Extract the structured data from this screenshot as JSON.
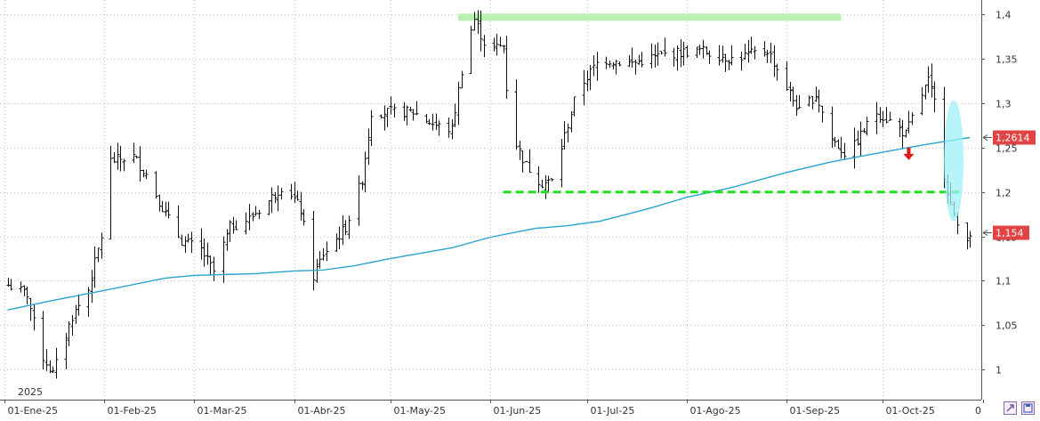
{
  "chart_data": {
    "type": "ohlc",
    "year_label": "2025",
    "x_tick_labels": [
      "01-Ene-25",
      "01-Feb-25",
      "01-Mar-25",
      "01-Abr-25",
      "01-May-25",
      "01-Jun-25",
      "01-Jul-25",
      "01-Ago-25",
      "01-Sep-25",
      "01-Oct-25",
      "0"
    ],
    "y_tick_labels": [
      "1",
      "1,05",
      "1,1",
      "1,15",
      "1,2",
      "1,25",
      "1,3",
      "1,35",
      "1,4"
    ],
    "ylim": [
      0.97,
      1.42
    ],
    "grid": true,
    "price_tags": [
      {
        "label": "1,2614",
        "value": 1.2614,
        "color": "#e04444"
      },
      {
        "label": "1,154",
        "value": 1.154,
        "color": "#e04444"
      }
    ],
    "annotations": {
      "resistance_level": 1.397,
      "support_level": 1.2,
      "arrow": "down",
      "arrow_color": "#e01818",
      "support_color": "#22dd22",
      "resistance_color": "#b8f0b0",
      "ellipse_color": "#9ff0f8"
    },
    "ma_color": "#2aa3d0",
    "moving_average": [
      [
        "2025-01-02",
        1.067
      ],
      [
        "2025-01-15",
        1.077
      ],
      [
        "2025-02-01",
        1.089
      ],
      [
        "2025-02-20",
        1.103
      ],
      [
        "2025-03-01",
        1.106
      ],
      [
        "2025-03-20",
        1.108
      ],
      [
        "2025-04-01",
        1.111
      ],
      [
        "2025-04-10",
        1.112
      ],
      [
        "2025-04-20",
        1.117
      ],
      [
        "2025-05-01",
        1.125
      ],
      [
        "2025-05-20",
        1.137
      ],
      [
        "2025-06-01",
        1.149
      ],
      [
        "2025-06-15",
        1.159
      ],
      [
        "2025-06-25",
        1.162
      ],
      [
        "2025-07-05",
        1.167
      ],
      [
        "2025-07-20",
        1.181
      ],
      [
        "2025-08-01",
        1.194
      ],
      [
        "2025-08-15",
        1.205
      ],
      [
        "2025-09-01",
        1.222
      ],
      [
        "2025-09-15",
        1.234
      ],
      [
        "2025-10-01",
        1.245
      ],
      [
        "2025-10-15",
        1.254
      ],
      [
        "2025-10-28",
        1.2614
      ]
    ],
    "ohlc_anchors": [
      [
        "2025-01-02",
        1.095
      ],
      [
        "2025-01-08",
        1.085
      ],
      [
        "2025-01-12",
        1.02
      ],
      [
        "2025-01-16",
        0.995
      ],
      [
        "2025-01-22",
        1.06
      ],
      [
        "2025-01-27",
        1.09
      ],
      [
        "2025-01-31",
        1.15
      ],
      [
        "2025-02-03",
        1.235
      ],
      [
        "2025-02-10",
        1.24
      ],
      [
        "2025-02-14",
        1.22
      ],
      [
        "2025-02-20",
        1.175
      ],
      [
        "2025-02-25",
        1.145
      ],
      [
        "2025-03-03",
        1.135
      ],
      [
        "2025-03-07",
        1.11
      ],
      [
        "2025-03-12",
        1.16
      ],
      [
        "2025-03-18",
        1.17
      ],
      [
        "2025-03-24",
        1.19
      ],
      [
        "2025-03-29",
        1.21
      ],
      [
        "2025-04-03",
        1.18
      ],
      [
        "2025-04-07",
        1.105
      ],
      [
        "2025-04-10",
        1.13
      ],
      [
        "2025-04-17",
        1.16
      ],
      [
        "2025-04-22",
        1.215
      ],
      [
        "2025-04-25",
        1.29
      ],
      [
        "2025-05-01",
        1.29
      ],
      [
        "2025-05-08",
        1.29
      ],
      [
        "2025-05-15",
        1.275
      ],
      [
        "2025-05-20",
        1.27
      ],
      [
        "2025-05-24",
        1.36
      ],
      [
        "2025-05-27",
        1.395
      ],
      [
        "2025-05-31",
        1.36
      ],
      [
        "2025-06-05",
        1.365
      ],
      [
        "2025-06-07",
        1.27
      ],
      [
        "2025-06-12",
        1.23
      ],
      [
        "2025-06-17",
        1.21
      ],
      [
        "2025-06-20",
        1.212
      ],
      [
        "2025-06-28",
        1.315
      ],
      [
        "2025-07-05",
        1.35
      ],
      [
        "2025-07-15",
        1.345
      ],
      [
        "2025-07-25",
        1.355
      ],
      [
        "2025-08-05",
        1.36
      ],
      [
        "2025-08-15",
        1.35
      ],
      [
        "2025-08-26",
        1.36
      ],
      [
        "2025-09-05",
        1.29
      ],
      [
        "2025-09-10",
        1.31
      ],
      [
        "2025-09-15",
        1.26
      ],
      [
        "2025-09-20",
        1.24
      ],
      [
        "2025-09-25",
        1.27
      ],
      [
        "2025-09-29",
        1.29
      ],
      [
        "2025-10-03",
        1.28
      ],
      [
        "2025-10-08",
        1.265
      ],
      [
        "2025-10-13",
        1.31
      ],
      [
        "2025-10-15",
        1.325
      ],
      [
        "2025-10-18",
        1.29
      ],
      [
        "2025-10-20",
        1.22
      ],
      [
        "2025-10-23",
        1.17
      ],
      [
        "2025-10-26",
        1.148
      ],
      [
        "2025-10-28",
        1.154
      ]
    ]
  },
  "toolbar": {
    "zoom_icon": "zoom-icon",
    "save_icon": "save-icon"
  }
}
